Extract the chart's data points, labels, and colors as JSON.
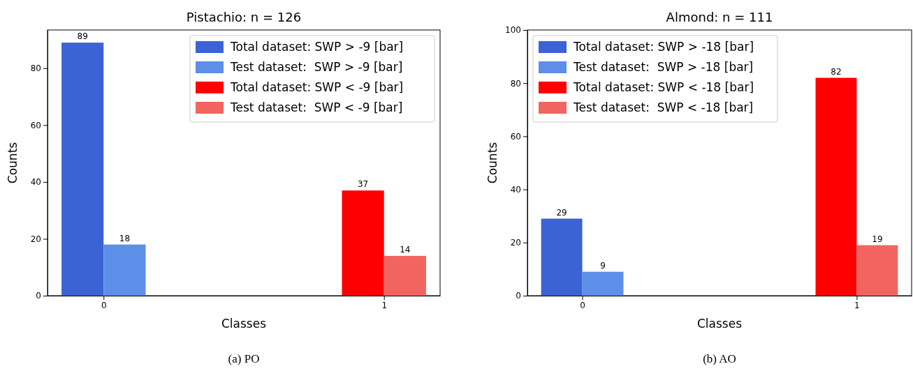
{
  "chart_data": [
    {
      "type": "bar",
      "title": "Pistachio:  n = 126",
      "xlabel": "Classes",
      "ylabel": "Counts",
      "categories": [
        "0",
        "1"
      ],
      "series": [
        {
          "name": "Total dataset: SWP > -9 [bar]",
          "color": "#3b63d6",
          "values": [
            89,
            null
          ]
        },
        {
          "name": "Test dataset:  SWP > -9 [bar]",
          "color": "#5d8ee8",
          "values": [
            18,
            null
          ]
        },
        {
          "name": "Total dataset: SWP < -9 [bar]",
          "color": "#ff0000",
          "values": [
            null,
            37
          ]
        },
        {
          "name": "Test dataset:  SWP < -9 [bar]",
          "color": "#f2645f",
          "values": [
            null,
            14
          ]
        }
      ],
      "ylim": [
        0,
        93.45
      ],
      "yticks": [
        0,
        20,
        40,
        60,
        80
      ],
      "data_labels": true,
      "legend": "top right",
      "annotations": [
        "(a) PO"
      ]
    },
    {
      "type": "bar",
      "title": "Almond:  n = 111",
      "xlabel": "Classes",
      "ylabel": "Counts",
      "categories": [
        "0",
        "1"
      ],
      "series": [
        {
          "name": "Total dataset: SWP > -18 [bar]",
          "color": "#3b63d6",
          "values": [
            29,
            null
          ]
        },
        {
          "name": "Test dataset:  SWP > -18 [bar]",
          "color": "#5d8ee8",
          "values": [
            9,
            null
          ]
        },
        {
          "name": "Total dataset: SWP < -18 [bar]",
          "color": "#ff0000",
          "values": [
            null,
            82
          ]
        },
        {
          "name": "Test dataset:  SWP < -18 [bar]",
          "color": "#f2645f",
          "values": [
            null,
            19
          ]
        }
      ],
      "ylim": [
        0,
        100
      ],
      "yticks": [
        0,
        20,
        40,
        60,
        80,
        100
      ],
      "data_labels": true,
      "legend": "top left",
      "annotations": [
        "(b) AO"
      ]
    }
  ]
}
